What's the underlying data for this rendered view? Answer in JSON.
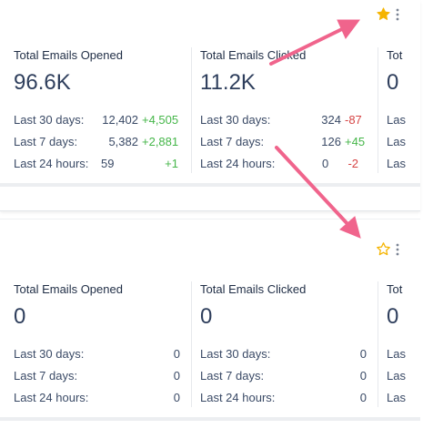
{
  "panel_1": {
    "favorited": true,
    "cards": [
      {
        "title": "Total Emails Opened",
        "total": "96.6K",
        "rows": [
          {
            "label": "Last 30 days:",
            "value": "12,402",
            "delta": "+4,505",
            "trend": "pos"
          },
          {
            "label": "Last 7 days:",
            "value": "5,382",
            "delta": "+2,881",
            "trend": "pos"
          },
          {
            "label": "Last 24 hours:",
            "value": "59",
            "delta": "+1",
            "trend": "pos"
          }
        ]
      },
      {
        "title": "Total Emails Clicked",
        "total": "11.2K",
        "rows": [
          {
            "label": "Last 30 days:",
            "value": "324",
            "delta": "-87",
            "trend": "neg"
          },
          {
            "label": "Last 7 days:",
            "value": "126",
            "delta": "+45",
            "trend": "pos"
          },
          {
            "label": "Last 24 hours:",
            "value": "0",
            "delta": "-2",
            "trend": "neg"
          }
        ]
      },
      {
        "title": "Tot",
        "total": "0",
        "rows": [
          {
            "label": "Las"
          },
          {
            "label": "Las"
          },
          {
            "label": "Las"
          }
        ]
      }
    ]
  },
  "panel_2": {
    "favorited": false,
    "cards": [
      {
        "title": "Total Emails Opened",
        "total": "0",
        "rows": [
          {
            "label": "Last 30 days:",
            "value": "0"
          },
          {
            "label": "Last 7 days:",
            "value": "0"
          },
          {
            "label": "Last 24 hours:",
            "value": "0"
          }
        ]
      },
      {
        "title": "Total Emails Clicked",
        "total": "0",
        "rows": [
          {
            "label": "Last 30 days:",
            "value": "0"
          },
          {
            "label": "Last 7 days:",
            "value": "0"
          },
          {
            "label": "Last 24 hours:",
            "value": "0"
          }
        ]
      },
      {
        "title": "Tot",
        "total": "0",
        "rows": [
          {
            "label": "Las"
          },
          {
            "label": "Las"
          },
          {
            "label": "Las"
          }
        ]
      }
    ]
  },
  "colors": {
    "star": "#f5b400",
    "arrow": "#f0648c",
    "positive": "#45b649",
    "negative": "#d64545"
  },
  "icons": {
    "favorite_filled": "star-filled-icon",
    "favorite_outline": "star-outline-icon",
    "menu": "kebab-menu-icon",
    "annotation": "arrow-annotation"
  }
}
